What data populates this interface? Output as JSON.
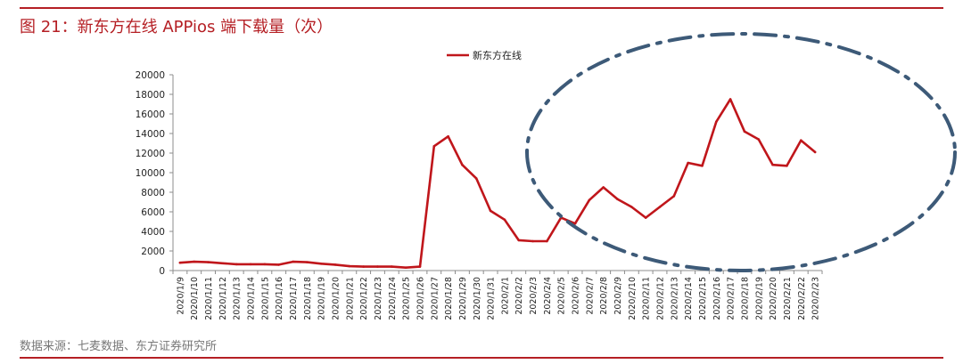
{
  "header": {
    "title": "图 21：新东方在线 APPios 端下载量（次）"
  },
  "footer": {
    "source": "数据来源：七麦数据、东方证券研究所"
  },
  "colors": {
    "accent": "#b51f24",
    "series": "#c0161b",
    "highlight": "#3d5a78"
  },
  "chart_data": {
    "type": "line",
    "title": "",
    "xlabel": "",
    "ylabel": "",
    "legend_position": "top-center",
    "grid": false,
    "ylim": [
      0,
      20000
    ],
    "yticks": [
      0,
      2000,
      4000,
      6000,
      8000,
      10000,
      12000,
      14000,
      16000,
      18000,
      20000
    ],
    "categories": [
      "2020/1/9",
      "2020/1/10",
      "2020/1/11",
      "2020/1/12",
      "2020/1/13",
      "2020/1/14",
      "2020/1/15",
      "2020/1/16",
      "2020/1/17",
      "2020/1/18",
      "2020/1/19",
      "2020/1/20",
      "2020/1/21",
      "2020/1/22",
      "2020/1/23",
      "2020/1/24",
      "2020/1/25",
      "2020/1/26",
      "2020/1/27",
      "2020/1/28",
      "2020/1/29",
      "2020/1/30",
      "2020/1/31",
      "2020/2/1",
      "2020/2/2",
      "2020/2/3",
      "2020/2/4",
      "2020/2/5",
      "2020/2/6",
      "2020/2/7",
      "2020/2/8",
      "2020/2/9",
      "2020/2/10",
      "2020/2/11",
      "2020/2/12",
      "2020/2/13",
      "2020/2/14",
      "2020/2/15",
      "2020/2/16",
      "2020/2/17",
      "2020/2/18",
      "2020/2/19",
      "2020/2/20",
      "2020/2/21",
      "2020/2/22",
      "2020/2/23"
    ],
    "series": [
      {
        "name": "新东方在线",
        "values": [
          800,
          900,
          850,
          750,
          650,
          650,
          650,
          600,
          900,
          850,
          700,
          600,
          450,
          400,
          400,
          400,
          300,
          400,
          12700,
          13700,
          10800,
          9400,
          6100,
          5200,
          3100,
          3000,
          3000,
          5400,
          4800,
          7200,
          8500,
          7300,
          6500,
          5400,
          6500,
          7600,
          11000,
          10700,
          15200,
          17500,
          14200,
          13400,
          10800,
          10700,
          13300,
          12100
        ]
      }
    ],
    "annotations": [
      {
        "shape": "ellipse",
        "style": "dash-dot",
        "covers": [
          "2020/2/5",
          "2020/2/23"
        ]
      }
    ]
  }
}
